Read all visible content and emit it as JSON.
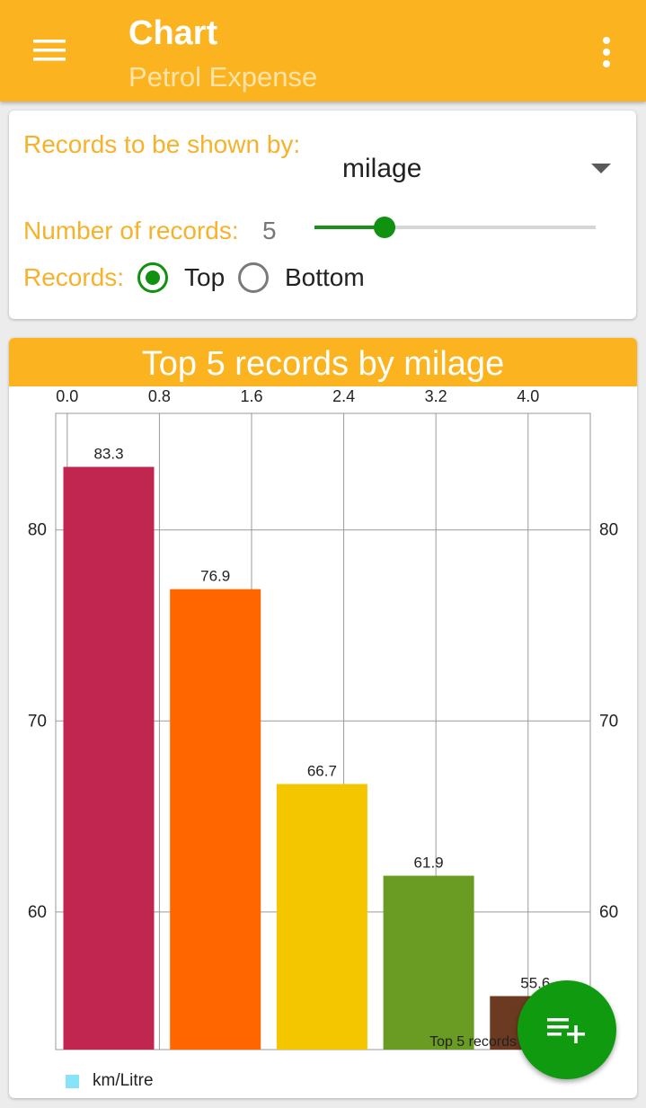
{
  "appbar": {
    "title": "Chart",
    "subtitle": "Petrol Expense",
    "menu_icon": "hamburger-menu-icon",
    "overflow_icon": "more-vert-icon"
  },
  "filters": {
    "records_by_label": "Records to be shown by:",
    "records_by_value": "milage",
    "count_label": "Number of records:",
    "count_value": "5",
    "slider_fraction": 0.25,
    "records_label": "Records:",
    "options": [
      {
        "label": "Top",
        "selected": true
      },
      {
        "label": "Bottom",
        "selected": false
      }
    ]
  },
  "chart": {
    "header": "Top 5 records by milage",
    "legend_label": "km/Litre",
    "legend_color": "#86e3f8"
  },
  "chart_data": {
    "type": "bar",
    "title": "Top 5 records by milage",
    "description_label": "Top 5 records",
    "x_ticks": [
      "0.0",
      "0.8",
      "1.6",
      "2.4",
      "3.2",
      "4.0"
    ],
    "xlim": [
      -0.1,
      4.54
    ],
    "y_ticks": [
      "60",
      "70",
      "80"
    ],
    "ylim": [
      52.8,
      86.1
    ],
    "series": [
      {
        "name": "km/Litre",
        "values": [
          83.3,
          76.9,
          66.7,
          61.9,
          55.6
        ],
        "value_labels": [
          "83.3",
          "76.9",
          "66.7",
          "61.9",
          "55.6"
        ],
        "colors": [
          "#c12651",
          "#ff6600",
          "#f4c600",
          "#6a9b23",
          "#6b3a20"
        ]
      }
    ],
    "x": [
      0,
      1,
      2,
      3,
      4
    ],
    "grid": true,
    "legend": "bottom-left"
  },
  "fab": {
    "icon": "playlist-add-icon"
  },
  "colors": {
    "accent": "#fbb420",
    "green": "#109a10"
  }
}
